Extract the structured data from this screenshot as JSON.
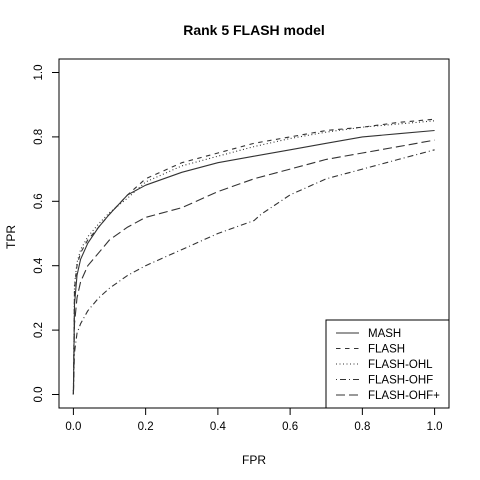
{
  "chart_data": {
    "type": "line",
    "title": "Rank 5 FLASH model",
    "xlabel": "FPR",
    "ylabel": "TPR",
    "xlim": [
      0,
      1
    ],
    "ylim": [
      0,
      1
    ],
    "xticks": [
      "0.0",
      "0.2",
      "0.4",
      "0.6",
      "0.8",
      "1.0"
    ],
    "yticks": [
      "0.0",
      "0.2",
      "0.4",
      "0.6",
      "0.8",
      "1.0"
    ],
    "grid": false,
    "legend_position": "bottom-right",
    "series": [
      {
        "name": "MASH",
        "linestyle": "solid",
        "x": [
          0,
          0.003,
          0.01,
          0.02,
          0.04,
          0.07,
          0.1,
          0.15,
          0.2,
          0.3,
          0.4,
          0.5,
          0.6,
          0.7,
          0.8,
          0.9,
          1.0
        ],
        "y": [
          0,
          0.28,
          0.37,
          0.42,
          0.47,
          0.52,
          0.56,
          0.62,
          0.65,
          0.69,
          0.72,
          0.74,
          0.76,
          0.78,
          0.8,
          0.81,
          0.82
        ]
      },
      {
        "name": "FLASH",
        "linestyle": "dashed",
        "x": [
          0,
          0.003,
          0.01,
          0.02,
          0.04,
          0.07,
          0.1,
          0.15,
          0.2,
          0.3,
          0.4,
          0.5,
          0.6,
          0.7,
          0.8,
          0.9,
          1.0
        ],
        "y": [
          0,
          0.33,
          0.4,
          0.44,
          0.48,
          0.52,
          0.56,
          0.62,
          0.67,
          0.72,
          0.75,
          0.78,
          0.8,
          0.82,
          0.83,
          0.845,
          0.855
        ]
      },
      {
        "name": "FLASH-OHL",
        "linestyle": "dotted",
        "x": [
          0,
          0.003,
          0.01,
          0.02,
          0.04,
          0.07,
          0.1,
          0.15,
          0.2,
          0.3,
          0.4,
          0.5,
          0.6,
          0.7,
          0.8,
          0.9,
          1.0
        ],
        "y": [
          0,
          0.34,
          0.41,
          0.45,
          0.49,
          0.53,
          0.565,
          0.61,
          0.66,
          0.71,
          0.74,
          0.77,
          0.795,
          0.815,
          0.83,
          0.84,
          0.85
        ]
      },
      {
        "name": "FLASH-OHF",
        "linestyle": "dotdash",
        "x": [
          0,
          0.003,
          0.01,
          0.02,
          0.04,
          0.07,
          0.1,
          0.15,
          0.2,
          0.3,
          0.4,
          0.5,
          0.52,
          0.6,
          0.7,
          0.8,
          0.9,
          1.0
        ],
        "y": [
          0,
          0.13,
          0.19,
          0.22,
          0.26,
          0.3,
          0.33,
          0.37,
          0.4,
          0.45,
          0.5,
          0.54,
          0.56,
          0.62,
          0.67,
          0.7,
          0.73,
          0.76
        ]
      },
      {
        "name": "FLASH-OHF+",
        "linestyle": "longdash",
        "x": [
          0,
          0.003,
          0.01,
          0.02,
          0.04,
          0.07,
          0.1,
          0.15,
          0.2,
          0.3,
          0.4,
          0.5,
          0.6,
          0.7,
          0.8,
          0.9,
          1.0
        ],
        "y": [
          0,
          0.22,
          0.3,
          0.35,
          0.4,
          0.44,
          0.48,
          0.52,
          0.55,
          0.58,
          0.63,
          0.67,
          0.7,
          0.73,
          0.75,
          0.77,
          0.79
        ]
      }
    ]
  }
}
